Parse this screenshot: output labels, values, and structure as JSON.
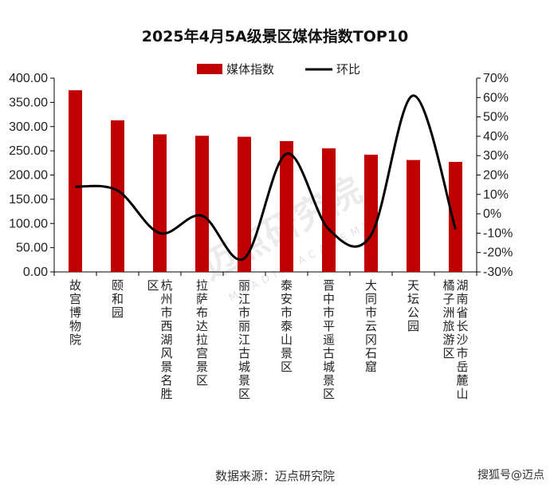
{
  "chart_data": {
    "type": "bar",
    "title": "2025年4月5A级景区媒体指数TOP10",
    "categories": [
      "故宫博物院",
      "颐和园",
      "杭州市西湖风景名胜区",
      "拉萨布达拉宫景区",
      "丽江市丽江古城景区",
      "泰安市泰山景区",
      "晋中市平遥古城景区",
      "大同市云冈石窟",
      "天坛公园",
      "湖南省长沙市岳麓山橘子洲旅游区"
    ],
    "series": [
      {
        "name": "媒体指数",
        "type": "bar",
        "axis": "left",
        "color": "#c00000",
        "values": [
          375,
          313,
          284,
          281,
          279,
          270,
          255,
          242,
          231,
          227
        ]
      },
      {
        "name": "环比",
        "type": "line",
        "axis": "right",
        "color": "#000000",
        "values": [
          14,
          12,
          -10,
          -1,
          -23,
          31,
          -8,
          -11,
          61,
          -8
        ]
      }
    ],
    "left_axis": {
      "min": 0,
      "max": 400,
      "step": 50,
      "ticks": [
        "0.00",
        "50.00",
        "100.00",
        "150.00",
        "200.00",
        "250.00",
        "300.00",
        "350.00",
        "400.00"
      ]
    },
    "right_axis": {
      "min": -30,
      "max": 70,
      "step": 10,
      "ticks": [
        "-30%",
        "-20%",
        "-10%",
        "0%",
        "10%",
        "20%",
        "30%",
        "40%",
        "50%",
        "60%",
        "70%"
      ]
    },
    "legend_position": "top",
    "grid": false,
    "source": "数据来源：迈点研究院"
  },
  "watermark": {
    "text": "迈点研究院",
    "subtext": "MEADIN ACADEMY"
  },
  "brand": {
    "text": "搜狐号@迈点"
  }
}
